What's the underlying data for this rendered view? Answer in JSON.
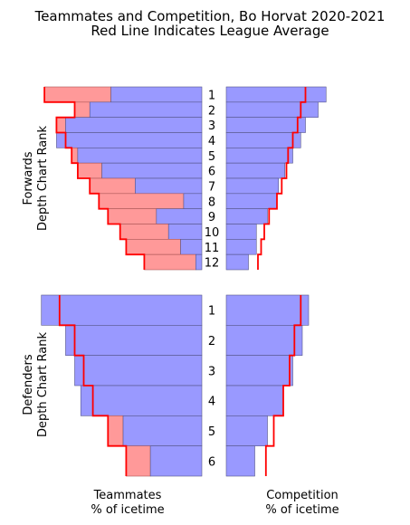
{
  "title": "Teammates and Competition, Bo Horvat 2020-2021",
  "subtitle": "Red Line Indicates League Average",
  "colors": {
    "bar_fill": "#9999ff",
    "bar_stroke": "#555588",
    "diff_fill": "#ff9999",
    "diff_stroke": "#aa5555",
    "league_line": "#ff0000"
  },
  "chart_data": [
    {
      "type": "bar",
      "panel": "forwards-teammates",
      "ylabel": [
        "Forwards",
        "Depth Chart Rank"
      ],
      "xlabel": [
        "Teammates",
        "% of icetime"
      ],
      "direction": "left",
      "categories": [
        "1",
        "2",
        "3",
        "4",
        "5",
        "6",
        "7",
        "8",
        "9",
        "10",
        "11",
        "12"
      ],
      "xlim": [
        0,
        60
      ],
      "values": [
        30,
        37,
        45,
        48,
        41,
        33,
        22,
        6,
        15,
        11,
        7,
        2
      ],
      "league_average": [
        52,
        42,
        48,
        45,
        43,
        41,
        37,
        34,
        31,
        27,
        25,
        19
      ]
    },
    {
      "type": "bar",
      "panel": "forwards-competition",
      "direction": "right",
      "categories": [
        "1",
        "2",
        "3",
        "4",
        "5",
        "6",
        "7",
        "8",
        "9",
        "10",
        "11",
        "12"
      ],
      "xlim": [
        0,
        60
      ],
      "values": [
        63,
        58,
        50,
        47,
        42,
        37,
        33,
        32,
        26,
        19,
        19,
        14
      ],
      "league_average": [
        50,
        47,
        45,
        42,
        39,
        38,
        35,
        32,
        27,
        24,
        22,
        20
      ]
    },
    {
      "type": "bar",
      "panel": "defenders-teammates",
      "ylabel": [
        "Defenders",
        "Depth Chart Rank"
      ],
      "direction": "left",
      "categories": [
        "1",
        "2",
        "3",
        "4",
        "5",
        "6"
      ],
      "xlim": [
        0,
        60
      ],
      "values": [
        53,
        45,
        42,
        40,
        26,
        17
      ],
      "league_average": [
        47,
        42,
        39,
        36,
        31,
        25
      ]
    },
    {
      "type": "bar",
      "panel": "defenders-competition",
      "xlabel": [
        "Competition",
        "% of icetime"
      ],
      "direction": "right",
      "categories": [
        "1",
        "2",
        "3",
        "4",
        "5",
        "6"
      ],
      "xlim": [
        0,
        60
      ],
      "values": [
        52,
        48,
        42,
        36,
        26,
        18
      ],
      "league_average": [
        47,
        43,
        40,
        36,
        30,
        25
      ]
    }
  ]
}
